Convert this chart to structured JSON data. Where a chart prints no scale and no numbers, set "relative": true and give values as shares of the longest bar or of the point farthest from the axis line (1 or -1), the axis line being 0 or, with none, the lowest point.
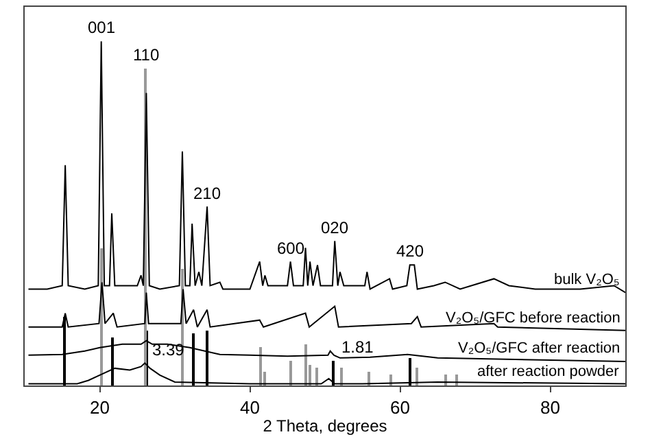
{
  "chart_data": {
    "type": "line",
    "relative": true,
    "xlabel": "2 Theta, degrees",
    "xlim": [
      10,
      90
    ],
    "xticks": [
      20,
      40,
      60,
      80
    ],
    "legend": false,
    "marker": "none",
    "line_style": "solid",
    "series": [
      {
        "name": "bulk V₂O₅",
        "color": "#000000",
        "x": [
          10.5,
          13,
          15,
          15.4,
          15.8,
          18,
          19.8,
          20.2,
          20.6,
          21.3,
          21.6,
          22,
          25,
          25.5,
          25.8,
          26.2,
          26.6,
          28,
          30.6,
          31,
          31.4,
          32,
          32.3,
          32.7,
          33.2,
          33.6,
          34.3,
          34.7,
          36,
          36.4,
          40,
          41.3,
          41.7,
          42,
          42.4,
          45,
          45.4,
          45.8,
          47.1,
          47.4,
          47.7,
          48,
          48.4,
          49,
          49.4,
          51,
          51.3,
          51.7,
          52,
          52.5,
          55.3,
          55.6,
          56,
          58.6,
          59,
          60.9,
          61.3,
          61.9,
          62.3,
          64.5,
          66,
          68,
          72.5,
          74.5,
          78,
          84,
          88.5,
          90
        ],
        "values": [
          0.28,
          0.28,
          0.29,
          0.64,
          0.29,
          0.28,
          0.29,
          1.0,
          0.29,
          0.29,
          0.5,
          0.29,
          0.29,
          0.32,
          0.29,
          0.85,
          0.29,
          0.28,
          0.29,
          0.68,
          0.29,
          0.29,
          0.47,
          0.29,
          0.33,
          0.29,
          0.52,
          0.29,
          0.3,
          0.28,
          0.28,
          0.36,
          0.29,
          0.32,
          0.29,
          0.29,
          0.36,
          0.29,
          0.29,
          0.4,
          0.29,
          0.36,
          0.29,
          0.35,
          0.29,
          0.29,
          0.42,
          0.29,
          0.33,
          0.29,
          0.29,
          0.33,
          0.28,
          0.31,
          0.28,
          0.29,
          0.35,
          0.35,
          0.28,
          0.29,
          0.3,
          0.28,
          0.31,
          0.29,
          0.28,
          0.28,
          0.29,
          0.27
        ]
      },
      {
        "name": "V₂O₅/GFC before reaction",
        "color": "#000000",
        "x": [
          10.5,
          15,
          15.4,
          15.8,
          19.9,
          20.3,
          20.7,
          21.8,
          22.3,
          26,
          26.2,
          26.5,
          30.8,
          31.1,
          31.5,
          32.5,
          33,
          34.3,
          34.7,
          41.3,
          41.8,
          47.4,
          47.9,
          51.3,
          51.8,
          61.5,
          62.3,
          62.8,
          72.5,
          73,
          90
        ],
        "values": [
          0.17,
          0.17,
          0.21,
          0.17,
          0.18,
          0.3,
          0.18,
          0.21,
          0.17,
          0.18,
          0.27,
          0.18,
          0.18,
          0.28,
          0.18,
          0.22,
          0.17,
          0.22,
          0.17,
          0.19,
          0.17,
          0.21,
          0.17,
          0.23,
          0.17,
          0.18,
          0.2,
          0.17,
          0.18,
          0.17,
          0.16
        ]
      },
      {
        "name": "V₂O₅/GFC after reaction",
        "color": "#000000",
        "x": [
          10.5,
          15,
          18,
          20,
          23,
          25.5,
          26.2,
          27,
          29,
          32,
          36,
          40,
          45,
          50.4,
          50.7,
          51.2,
          52,
          56,
          61,
          65,
          90
        ],
        "values": [
          0.088,
          0.09,
          0.1,
          0.11,
          0.12,
          0.12,
          0.13,
          0.12,
          0.12,
          0.11,
          0.09,
          0.088,
          0.085,
          0.088,
          0.1,
          0.088,
          0.08,
          0.082,
          0.09,
          0.08,
          0.07
        ]
      },
      {
        "name": "after reaction powder",
        "color": "#000000",
        "x": [
          10.5,
          17,
          18.5,
          20,
          22,
          24,
          25.5,
          26,
          26.7,
          28,
          30,
          40,
          49.5,
          50.5,
          51.3,
          55,
          65,
          90
        ],
        "values": [
          0.005,
          0.005,
          0.015,
          0.03,
          0.05,
          0.045,
          0.055,
          0.065,
          0.05,
          0.03,
          0.01,
          0.005,
          0.005,
          0.02,
          0.005,
          0.005,
          0.01,
          0.005
        ]
      },
      {
        "type": "bar",
        "color": "#000000",
        "x": [
          15.4,
          21.7,
          26.3,
          32.4,
          34.4,
          51.2,
          61.3
        ],
        "values": [
          0.2,
          0.14,
          0.16,
          0.15,
          0.16,
          0.07,
          0.08
        ]
      },
      {
        "type": "bar",
        "color": "#999999",
        "x": [
          20.3,
          26.1,
          31,
          41.5,
          42,
          45.5,
          47.4,
          48,
          49,
          52.2,
          55.8,
          58.8,
          62.3,
          66,
          67.5
        ],
        "values": [
          0.4,
          0.92,
          0.34,
          0.11,
          0.04,
          0.07,
          0.12,
          0.06,
          0.05,
          0.05,
          0.04,
          0.03,
          0.05,
          0.03,
          0.03
        ]
      }
    ],
    "annotations": [
      {
        "text": "001",
        "x": 20.2,
        "y": 1.0
      },
      {
        "text": "110",
        "x": 26.1,
        "y": 0.92
      },
      {
        "text": "210",
        "x": 34.3,
        "y": 0.52
      },
      {
        "text": "600",
        "x": 45.4,
        "y": 0.36
      },
      {
        "text": "020",
        "x": 51.3,
        "y": 0.42
      },
      {
        "text": "420",
        "x": 61.3,
        "y": 0.35
      },
      {
        "text": "3.39",
        "x": 26,
        "y": 0.065
      },
      {
        "text": "1.81",
        "x": 51.2,
        "y": 0.07
      }
    ]
  }
}
